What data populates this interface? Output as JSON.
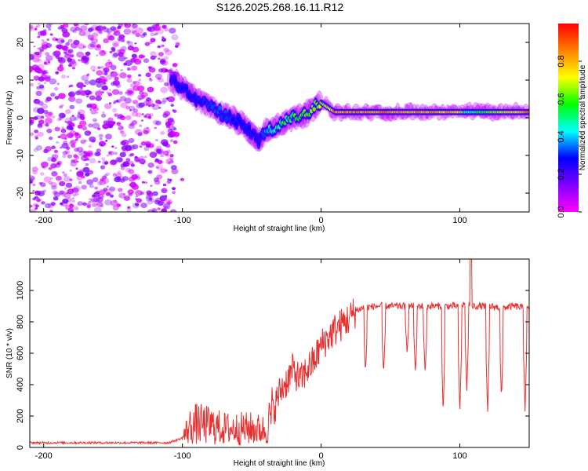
{
  "figure_title": "S126.2025.268.16.11.R12",
  "chart_data": [
    {
      "type": "heatmap",
      "name": "spectrogram",
      "xlabel": "Height of straight line (km)",
      "ylabel": "Frequency (Hz)",
      "xlim": [
        -210,
        150
      ],
      "ylim": [
        -25,
        25
      ],
      "x_ticks": [
        -200,
        -100,
        0,
        100
      ],
      "x_tick_labels": [
        "-200",
        "-100",
        "0",
        "100"
      ],
      "y_ticks": [
        -20,
        -10,
        0,
        10,
        20
      ],
      "y_tick_labels": [
        "-20",
        "-10",
        "0",
        "10",
        "20"
      ],
      "colorbar": {
        "label": "Normalized spectral amplitude",
        "range": [
          0,
          1
        ],
        "ticks": [
          0.0,
          0.2,
          0.4,
          0.6,
          0.8
        ],
        "tick_labels": [
          "0.0",
          "0.2",
          "0.4",
          "0.6",
          "0.8"
        ],
        "colormap_stops": [
          "#ff00ff",
          "#8000ff",
          "#0000ff",
          "#00ffff",
          "#00ff00",
          "#ffff00",
          "#ff8000",
          "#ff0000"
        ]
      },
      "noise_region": {
        "x_range": [
          -210,
          -105
        ],
        "freq_range": [
          -25,
          25
        ],
        "amplitude": "low (purple)"
      },
      "signal_track": {
        "x": [
          -108,
          -100,
          -90,
          -80,
          -70,
          -60,
          -50,
          -45,
          -40,
          -30,
          -20,
          -10,
          -5,
          0,
          10,
          50,
          100,
          105,
          150
        ],
        "freq": [
          10,
          8,
          5,
          3,
          1,
          -1,
          -4,
          -6,
          -4,
          -2,
          0,
          1,
          3,
          4,
          1.5,
          1.5,
          1.5,
          1.5,
          1.5
        ],
        "amplitude": [
          0.25,
          0.3,
          0.3,
          0.35,
          0.35,
          0.3,
          0.3,
          0.25,
          0.4,
          0.55,
          0.6,
          0.65,
          0.7,
          0.7,
          0.9,
          0.9,
          0.85,
          0.5,
          0.9
        ]
      }
    },
    {
      "type": "line",
      "name": "snr",
      "xlabel": "Height of straight line (km)",
      "ylabel": "SNR (10 * v/v)",
      "xlim": [
        -210,
        150
      ],
      "ylim": [
        0,
        1200
      ],
      "x_ticks": [
        -200,
        -100,
        0,
        100
      ],
      "x_tick_labels": [
        "-200",
        "-100",
        "0",
        "100"
      ],
      "y_ticks": [
        0,
        200,
        400,
        600,
        800,
        1000
      ],
      "y_tick_labels": [
        "0",
        "200",
        "400",
        "600",
        "800",
        "1000"
      ],
      "series": [
        {
          "name": "SNR",
          "color": "#e83030",
          "x": [
            -210,
            -150,
            -110,
            -100,
            -95,
            -90,
            -80,
            -70,
            -60,
            -50,
            -40,
            -35,
            -30,
            -25,
            -20,
            -15,
            -10,
            -5,
            0,
            5,
            10,
            20,
            25,
            30,
            40,
            50,
            60,
            70,
            80,
            90,
            100,
            105,
            110,
            120,
            130,
            140,
            150
          ],
          "y": [
            30,
            30,
            30,
            60,
            130,
            150,
            140,
            120,
            120,
            120,
            110,
            220,
            350,
            420,
            500,
            420,
            500,
            550,
            650,
            700,
            750,
            820,
            870,
            890,
            900,
            900,
            900,
            900,
            900,
            900,
            900,
            920,
            900,
            900,
            890,
            900,
            880
          ]
        }
      ],
      "dips": [
        {
          "x": 32,
          "y": 480
        },
        {
          "x": 45,
          "y": 470
        },
        {
          "x": 62,
          "y": 600
        },
        {
          "x": 68,
          "y": 470
        },
        {
          "x": 75,
          "y": 470
        },
        {
          "x": 88,
          "y": 210
        },
        {
          "x": 100,
          "y": 210
        },
        {
          "x": 105,
          "y": 360
        },
        {
          "x": 120,
          "y": 210
        },
        {
          "x": 130,
          "y": 310
        },
        {
          "x": 147,
          "y": 230
        }
      ],
      "peak": {
        "x": 108,
        "y": 1200
      }
    }
  ]
}
